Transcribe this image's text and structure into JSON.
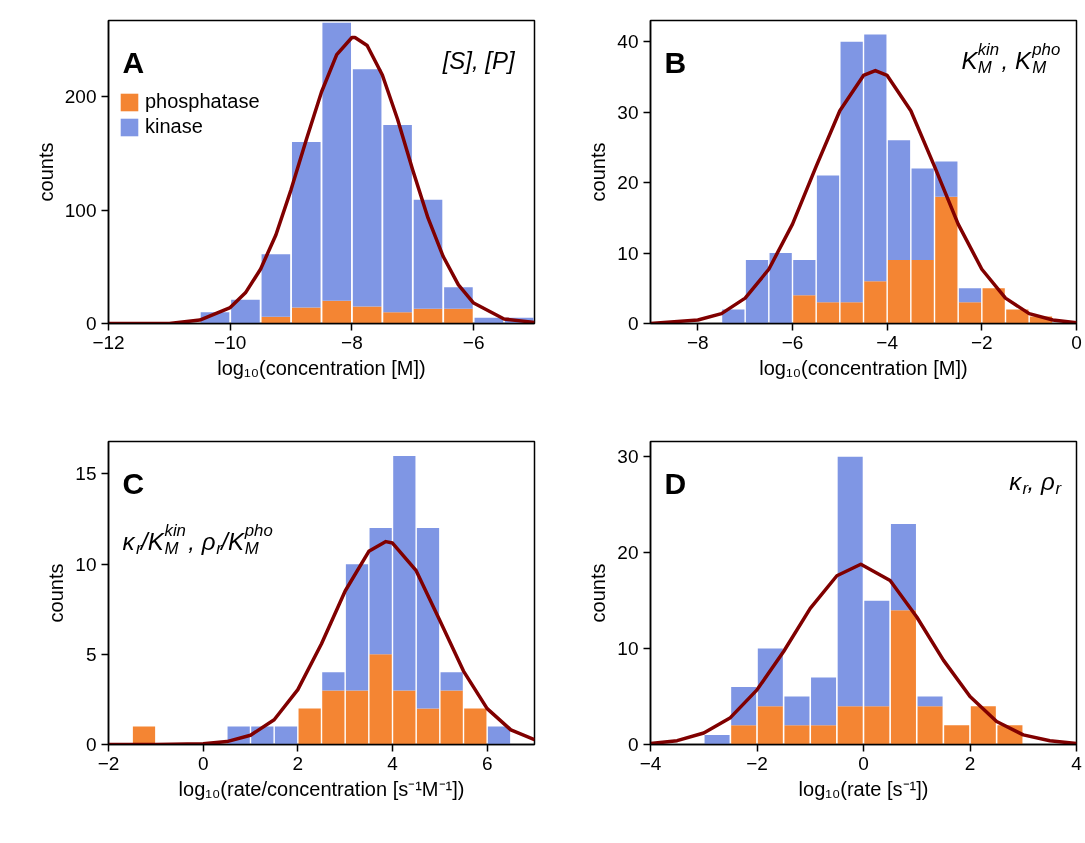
{
  "chart_data": [
    {
      "type": "bar",
      "xlabel": "log₁₀(concentration [M])",
      "ylabel": "counts",
      "annotations": [
        "A",
        "[S], [P]"
      ],
      "stacked": true,
      "legend": "top left",
      "x": [
        -10.25,
        -9.75,
        -9.25,
        -8.75,
        -8.25,
        -7.75,
        -7.25,
        -6.75,
        -6.25,
        -5.75,
        -5.25
      ],
      "series": [
        {
          "name": "phosphatase",
          "color": "#f48533",
          "values": [
            0,
            0,
            6,
            14,
            20,
            15,
            10,
            13,
            13,
            0,
            0
          ]
        },
        {
          "name": "kinase",
          "color": "#7f96e4",
          "values": [
            10,
            21,
            55,
            146,
            245,
            209,
            165,
            96,
            19,
            5,
            5
          ]
        },
        {
          "type": "line",
          "color": "#800000",
          "x": [
            -12,
            -11,
            -10.5,
            -10,
            -9.75,
            -9.5,
            -9.25,
            -9,
            -8.75,
            -8.5,
            -8.25,
            -8,
            -7.95,
            -7.75,
            -7.5,
            -7.25,
            -7,
            -6.75,
            -6.5,
            -6.25,
            -6,
            -5.5,
            -5
          ],
          "values": [
            0,
            0,
            3,
            14,
            27,
            48,
            78,
            118,
            162,
            204,
            237,
            252,
            252,
            245,
            219,
            180,
            135,
            93,
            59,
            34,
            18,
            4,
            1
          ]
        }
      ],
      "xlim": [
        -12,
        -5
      ],
      "xticks": [
        {
          "value": -12,
          "label": "−12"
        },
        {
          "value": -10,
          "label": "−10"
        },
        {
          "value": -8,
          "label": "−8"
        },
        {
          "value": -6,
          "label": "−6"
        }
      ],
      "ylim": [
        0,
        267
      ],
      "yticks": [
        0,
        100,
        200
      ]
    },
    {
      "type": "bar",
      "xlabel": "log₁₀(concentration [M])",
      "ylabel": "counts",
      "annotations": [
        "B",
        "K$^{kin}$$_{M}$, K$^{pho}$$_{M}$"
      ],
      "stacked": true,
      "x": [
        -7.25,
        -6.75,
        -6.25,
        -5.75,
        -5.25,
        -4.75,
        -4.25,
        -3.75,
        -3.25,
        -2.75,
        -2.25,
        -1.75,
        -1.25,
        -0.75
      ],
      "series": [
        {
          "color": "#f48533",
          "values": [
            0,
            0,
            0,
            4,
            3,
            3,
            6,
            9,
            9,
            18,
            3,
            5,
            2,
            1
          ]
        },
        {
          "color": "#7f96e4",
          "values": [
            2,
            9,
            10,
            5,
            18,
            37,
            35,
            17,
            13,
            5,
            2,
            0,
            0,
            0
          ]
        },
        {
          "type": "line",
          "color": "#800000",
          "x": [
            -9,
            -8,
            -7.5,
            -7,
            -6.5,
            -6,
            -5.5,
            -5,
            -4.5,
            -4.25,
            -4,
            -3.5,
            -3,
            -2.5,
            -2,
            -1.5,
            -1,
            -0.5,
            0
          ],
          "values": [
            0,
            0.5,
            1.4,
            3.6,
            7.7,
            14.1,
            22.3,
            30.2,
            35.2,
            35.9,
            35.2,
            30.2,
            22.3,
            14.1,
            7.7,
            3.6,
            1.4,
            0.5,
            0.1
          ]
        }
      ],
      "xlim": [
        -9,
        0
      ],
      "xticks": [
        {
          "value": -8,
          "label": "−8"
        },
        {
          "value": -6,
          "label": "−6"
        },
        {
          "value": -4,
          "label": "−4"
        },
        {
          "value": -2,
          "label": "−2"
        },
        0
      ],
      "ylim": [
        0,
        43
      ],
      "yticks": [
        0,
        10,
        20,
        30,
        40
      ]
    },
    {
      "type": "bar",
      "xlabel": "log₁₀(rate/concentration [s⁻¹M⁻¹])",
      "ylabel": "counts",
      "annotations": [
        "C",
        "κ$_{r}$/K$^{kin}$$_{M}$, ρ$_{r}$/K$^{pho}$$_{M}$"
      ],
      "stacked": true,
      "x": [
        -1.25,
        -0.75,
        -0.25,
        0.25,
        0.75,
        1.25,
        1.75,
        2.25,
        2.75,
        3.25,
        3.75,
        4.25,
        4.75,
        5.25,
        5.75,
        6.25
      ],
      "series": [
        {
          "color": "#f48533",
          "values": [
            1,
            0,
            0,
            0,
            0,
            0,
            0,
            2,
            3,
            3,
            5,
            3,
            2,
            3,
            2,
            0
          ]
        },
        {
          "color": "#7f96e4",
          "values": [
            0,
            0,
            0,
            0,
            1,
            1,
            1,
            0,
            1,
            7,
            7,
            13,
            10,
            1,
            0,
            1
          ]
        },
        {
          "type": "line",
          "color": "#800000",
          "x": [
            -2,
            -1,
            0,
            0.5,
            1,
            1.5,
            2,
            2.5,
            3,
            3.5,
            3.86,
            4,
            4.5,
            5,
            5.5,
            6,
            6.5,
            7
          ],
          "values": [
            0,
            0,
            0.04,
            0.16,
            0.51,
            1.37,
            3.04,
            5.59,
            8.51,
            10.71,
            11.25,
            11.17,
            9.64,
            6.88,
            4.07,
            1.99,
            0.81,
            0.27
          ]
        }
      ],
      "xlim": [
        -2,
        7
      ],
      "xticks": [
        {
          "value": -2,
          "label": "−2"
        },
        0,
        2,
        4,
        6
      ],
      "ylim": [
        0,
        16.8
      ],
      "yticks": [
        0,
        5,
        10,
        15
      ]
    },
    {
      "type": "bar",
      "xlabel": "log₁₀(rate [s⁻¹])",
      "ylabel": "counts",
      "annotations": [
        "D",
        "κ$_{r}$, ρ$_{r}$"
      ],
      "stacked": true,
      "x": [
        -2.75,
        -2.25,
        -1.75,
        -1.25,
        -0.75,
        -0.25,
        0.25,
        0.75,
        1.25,
        1.75,
        2.25,
        2.75
      ],
      "series": [
        {
          "color": "#f48533",
          "values": [
            0,
            2,
            4,
            2,
            2,
            4,
            4,
            14,
            4,
            2,
            4,
            2
          ]
        },
        {
          "color": "#7f96e4",
          "values": [
            1,
            4,
            6,
            3,
            5,
            26,
            11,
            9,
            1,
            0,
            0,
            0
          ]
        },
        {
          "type": "line",
          "color": "#800000",
          "x": [
            -4,
            -3.5,
            -3,
            -2.5,
            -2,
            -1.5,
            -1,
            -0.5,
            -0.05,
            0.5,
            1,
            1.5,
            2,
            2.5,
            3,
            3.5,
            4
          ],
          "values": [
            0.1,
            0.4,
            1.2,
            2.8,
            5.7,
            9.7,
            14.2,
            17.6,
            18.8,
            17.1,
            13.3,
            8.8,
            5,
            2.4,
            1,
            0.4,
            0.1
          ]
        }
      ],
      "xlim": [
        -4,
        4
      ],
      "xticks": [
        {
          "value": -4,
          "label": "−4"
        },
        {
          "value": -2,
          "label": "−2"
        },
        0,
        {
          "value": 2,
          "label": "2"
        },
        4
      ],
      "ylim": [
        0,
        31.6
      ],
      "yticks": [
        0,
        10,
        20,
        30
      ]
    }
  ]
}
